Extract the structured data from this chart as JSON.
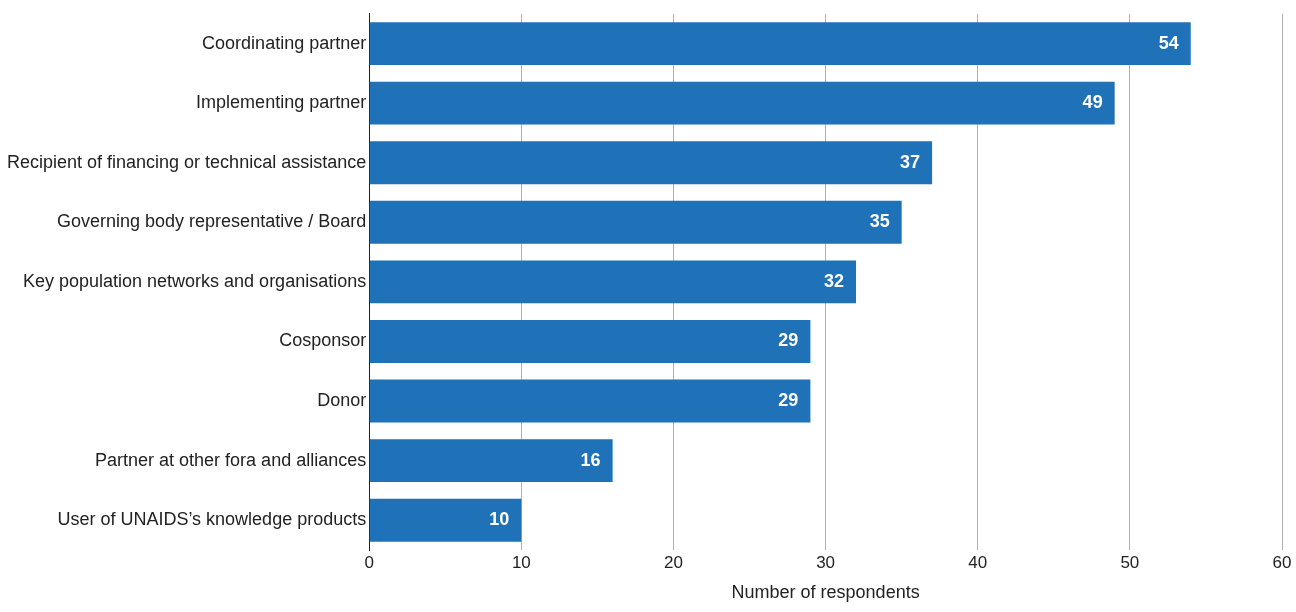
{
  "chart_data": {
    "type": "bar",
    "orientation": "horizontal",
    "xlabel": "Number of respondents",
    "categories": [
      "Coordinating partner",
      "Implementing partner",
      "Recipient of financing or technical assistance",
      "Governing body representative / Board",
      "Key population networks and organisations",
      "Cosponsor",
      "Donor",
      "Partner at other fora and alliances",
      "User of UNAIDS’s knowledge products"
    ],
    "values": [
      54,
      49,
      37,
      35,
      32,
      29,
      29,
      16,
      10
    ],
    "color": "#1f71b8",
    "xlim": [
      0,
      60
    ],
    "xticks": [
      0,
      10,
      20,
      30,
      40,
      50,
      60
    ],
    "grid": "x",
    "data_labels": true,
    "legend": false
  }
}
